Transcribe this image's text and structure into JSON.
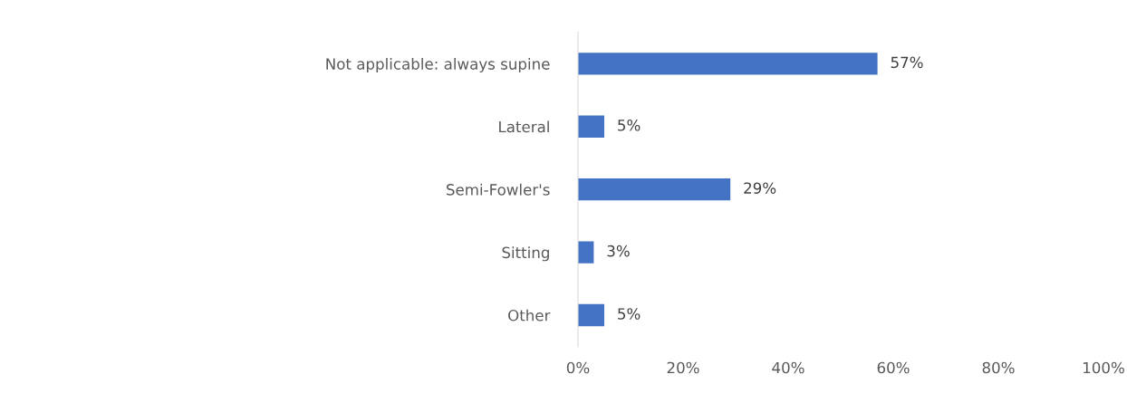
{
  "chart_data": {
    "type": "bar",
    "orientation": "horizontal",
    "categories": [
      "Not applicable: always supine",
      "Lateral",
      "Semi-Fowler's",
      "Sitting",
      "Other"
    ],
    "values": [
      57,
      5,
      29,
      3,
      5
    ],
    "value_labels": [
      "57%",
      "5%",
      "29%",
      "3%",
      "5%"
    ],
    "color": "#4472c4",
    "xlim": [
      0,
      100
    ],
    "xticks": [
      {
        "value": 0,
        "label": "0%"
      },
      {
        "value": 20,
        "label": "20%"
      },
      {
        "value": 40,
        "label": "40%"
      },
      {
        "value": 60,
        "label": "60%"
      },
      {
        "value": 80,
        "label": "80%"
      },
      {
        "value": 100,
        "label": "100%"
      }
    ],
    "grid": false,
    "legend": false
  }
}
